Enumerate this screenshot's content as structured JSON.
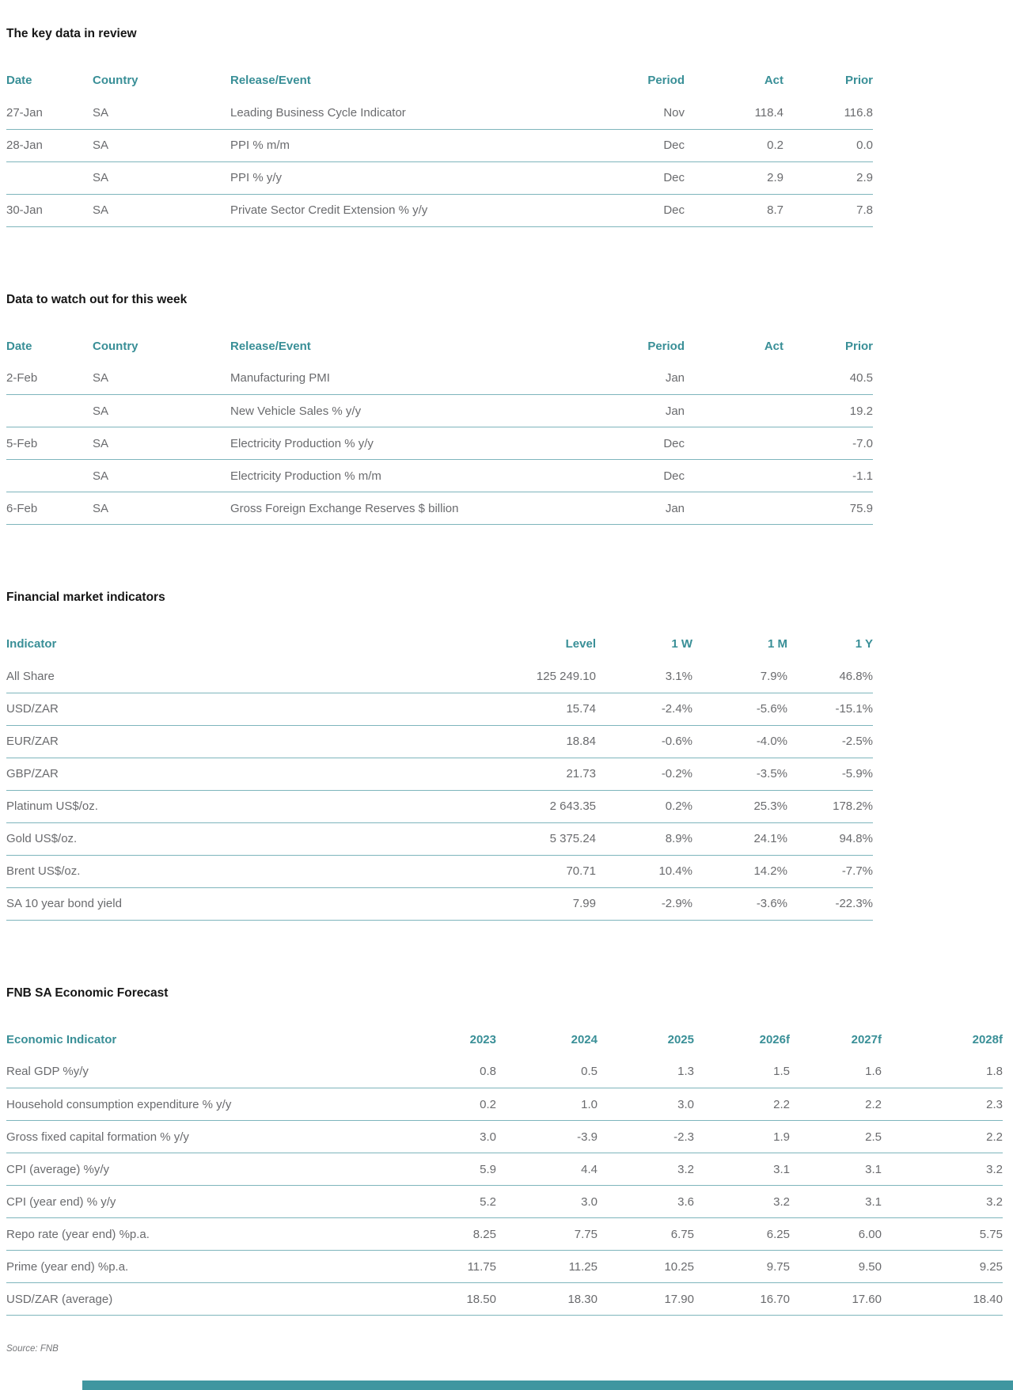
{
  "source_note": "Source: FNB",
  "colors": {
    "accent_teal": "#398F97",
    "rule_teal": "#7EB5BC",
    "body_text_gray": "#6A6B6E",
    "footer_bar_teal": "#3F96A0"
  },
  "sections": {
    "review": {
      "title": "The key data in review",
      "headers": [
        "Date",
        "Country",
        "Release/Event",
        "Period",
        "Act",
        "Prior"
      ],
      "rows": [
        [
          "27-Jan",
          "SA",
          "Leading Business Cycle Indicator",
          "Nov",
          "118.4",
          "116.8"
        ],
        [
          "28-Jan",
          "SA",
          "PPI % m/m",
          "Dec",
          "0.2",
          "0.0"
        ],
        [
          "",
          "SA",
          "PPI % y/y",
          "Dec",
          "2.9",
          "2.9"
        ],
        [
          "30-Jan",
          "SA",
          "Private Sector Credit Extension % y/y",
          "Dec",
          "8.7",
          "7.8"
        ]
      ]
    },
    "watch": {
      "title": "Data to watch out for this week",
      "headers": [
        "Date",
        "Country",
        "Release/Event",
        "Period",
        "Act",
        "Prior"
      ],
      "rows": [
        [
          "2-Feb",
          "SA",
          "Manufacturing PMI",
          "Jan",
          "",
          "40.5"
        ],
        [
          "",
          "SA",
          "New Vehicle Sales % y/y",
          "Jan",
          "",
          "19.2"
        ],
        [
          "5-Feb",
          "SA",
          "Electricity Production % y/y",
          "Dec",
          "",
          "-7.0"
        ],
        [
          "",
          "SA",
          "Electricity Production % m/m",
          "Dec",
          "",
          "-1.1"
        ],
        [
          "6-Feb",
          "SA",
          "Gross Foreign Exchange Reserves $ billion",
          "Jan",
          "",
          "75.9"
        ]
      ]
    },
    "financial": {
      "title": "Financial market indicators",
      "headers": [
        "Indicator",
        "Level",
        "1 W",
        "1 M",
        "1 Y"
      ],
      "rows": [
        [
          "All Share",
          "125 249.10",
          "3.1%",
          "7.9%",
          "46.8%"
        ],
        [
          "USD/ZAR",
          "15.74",
          "-2.4%",
          "-5.6%",
          "-15.1%"
        ],
        [
          "EUR/ZAR",
          "18.84",
          "-0.6%",
          "-4.0%",
          "-2.5%"
        ],
        [
          "GBP/ZAR",
          "21.73",
          "-0.2%",
          "-3.5%",
          "-5.9%"
        ],
        [
          "Platinum US$/oz.",
          "2 643.35",
          "0.2%",
          "25.3%",
          "178.2%"
        ],
        [
          "Gold US$/oz.",
          "5 375.24",
          "8.9%",
          "24.1%",
          "94.8%"
        ],
        [
          "Brent US$/oz.",
          "70.71",
          "10.4%",
          "14.2%",
          "-7.7%"
        ],
        [
          "SA 10 year bond yield",
          "7.99",
          "-2.9%",
          "-3.6%",
          "-22.3%"
        ]
      ]
    },
    "forecast": {
      "title": "FNB SA Economic Forecast",
      "headers": [
        "Economic Indicator",
        "2023",
        "2024",
        "2025",
        "2026f",
        "2027f",
        "2028f"
      ],
      "rows": [
        [
          "Real GDP %y/y",
          "0.8",
          "0.5",
          "1.3",
          "1.5",
          "1.6",
          "1.8"
        ],
        [
          "Household consumption expenditure % y/y",
          "0.2",
          "1.0",
          "3.0",
          "2.2",
          "2.2",
          "2.3"
        ],
        [
          "Gross fixed capital formation % y/y",
          "3.0",
          "-3.9",
          "-2.3",
          "1.9",
          "2.5",
          "2.2"
        ],
        [
          "CPI (average) %y/y",
          "5.9",
          "4.4",
          "3.2",
          "3.1",
          "3.1",
          "3.2"
        ],
        [
          "CPI (year end) % y/y",
          "5.2",
          "3.0",
          "3.6",
          "3.2",
          "3.1",
          "3.2"
        ],
        [
          "Repo rate (year end) %p.a.",
          "8.25",
          "7.75",
          "6.75",
          "6.25",
          "6.00",
          "5.75"
        ],
        [
          "Prime (year end) %p.a.",
          "11.75",
          "11.25",
          "10.25",
          "9.75",
          "9.50",
          "9.25"
        ],
        [
          "USD/ZAR (average)",
          "18.50",
          "18.30",
          "17.90",
          "16.70",
          "17.60",
          "18.40"
        ]
      ]
    }
  }
}
